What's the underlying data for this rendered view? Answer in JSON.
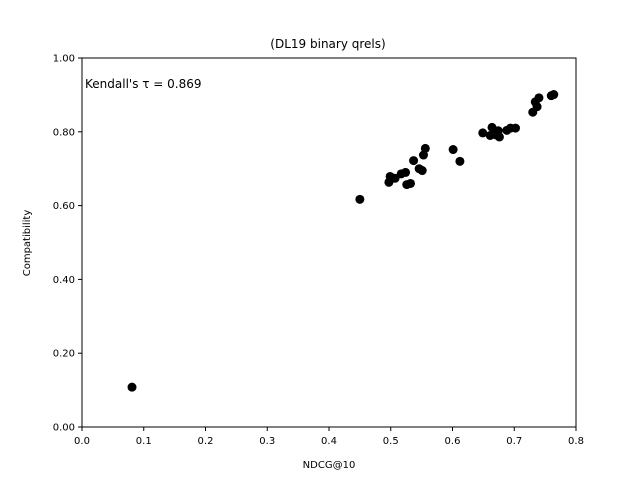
{
  "chart_data": {
    "type": "scatter",
    "title": "(DL19 binary qrels)",
    "xlabel": "NDCG@10",
    "ylabel": "Compatibility",
    "xlim": [
      0.0,
      0.8
    ],
    "ylim": [
      0.0,
      1.0
    ],
    "xticks": [
      "0.0",
      "0.1",
      "0.2",
      "0.3",
      "0.4",
      "0.5",
      "0.6",
      "0.7",
      "0.8"
    ],
    "yticks": [
      "0.00",
      "0.20",
      "0.40",
      "0.60",
      "0.80",
      "1.00"
    ],
    "annotation": "Kendall's τ = 0.869",
    "grid": false,
    "marker_color": "#000000",
    "points": [
      {
        "x": 0.081,
        "y": 0.108
      },
      {
        "x": 0.45,
        "y": 0.617
      },
      {
        "x": 0.497,
        "y": 0.663
      },
      {
        "x": 0.499,
        "y": 0.679
      },
      {
        "x": 0.507,
        "y": 0.674
      },
      {
        "x": 0.517,
        "y": 0.686
      },
      {
        "x": 0.524,
        "y": 0.69
      },
      {
        "x": 0.526,
        "y": 0.657
      },
      {
        "x": 0.532,
        "y": 0.66
      },
      {
        "x": 0.537,
        "y": 0.722
      },
      {
        "x": 0.546,
        "y": 0.7
      },
      {
        "x": 0.551,
        "y": 0.695
      },
      {
        "x": 0.553,
        "y": 0.737
      },
      {
        "x": 0.556,
        "y": 0.755
      },
      {
        "x": 0.601,
        "y": 0.752
      },
      {
        "x": 0.612,
        "y": 0.72
      },
      {
        "x": 0.649,
        "y": 0.797
      },
      {
        "x": 0.661,
        "y": 0.79
      },
      {
        "x": 0.664,
        "y": 0.812
      },
      {
        "x": 0.668,
        "y": 0.796
      },
      {
        "x": 0.671,
        "y": 0.791
      },
      {
        "x": 0.674,
        "y": 0.803
      },
      {
        "x": 0.676,
        "y": 0.786
      },
      {
        "x": 0.688,
        "y": 0.804
      },
      {
        "x": 0.694,
        "y": 0.81
      },
      {
        "x": 0.702,
        "y": 0.81
      },
      {
        "x": 0.73,
        "y": 0.853
      },
      {
        "x": 0.734,
        "y": 0.881
      },
      {
        "x": 0.737,
        "y": 0.868
      },
      {
        "x": 0.74,
        "y": 0.892
      },
      {
        "x": 0.76,
        "y": 0.898
      },
      {
        "x": 0.764,
        "y": 0.901
      }
    ]
  }
}
